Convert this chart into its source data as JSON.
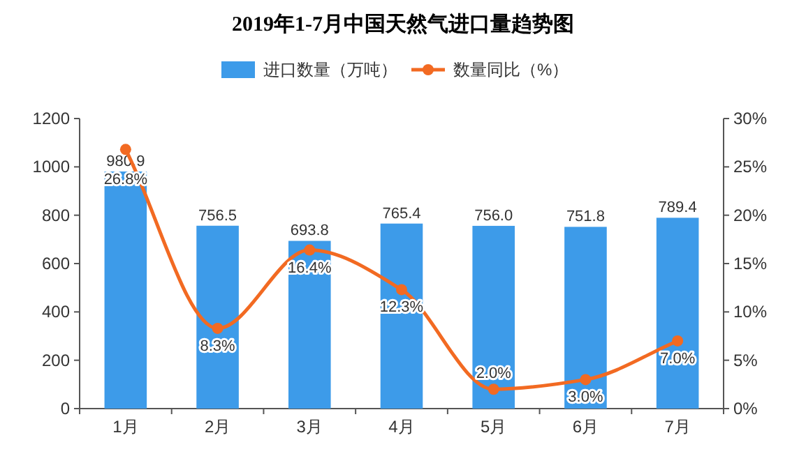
{
  "chart_data": {
    "type": "bar",
    "title": "2019年1-7月中国天然气进口量趋势图",
    "categories": [
      "1月",
      "2月",
      "3月",
      "4月",
      "5月",
      "6月",
      "7月"
    ],
    "series": [
      {
        "name": "进口数量（万吨）",
        "color": "#3d9be9",
        "values": [
          980.9,
          756.5,
          693.8,
          765.4,
          756.0,
          751.8,
          789.4
        ],
        "value_labels": [
          "980.9",
          "756.5",
          "693.8",
          "765.4",
          "756.0",
          "751.8",
          "789.4"
        ]
      },
      {
        "name": "数量同比（%）",
        "type": "line",
        "axis": "y2",
        "color": "#f26a22",
        "values": [
          26.8,
          8.3,
          16.4,
          12.3,
          2.0,
          3.0,
          7.0
        ],
        "value_labels": [
          "26.8%",
          "8.3%",
          "16.4%",
          "12.3%",
          "2.0%",
          "3.0%",
          "7.0%"
        ]
      }
    ],
    "ylim": [
      0,
      1200
    ],
    "yticks": [
      0,
      200,
      400,
      600,
      800,
      1000,
      1200
    ],
    "y2lim": [
      0,
      30
    ],
    "y2ticks": [
      {
        "value": 0,
        "label": "0%"
      },
      {
        "value": 5,
        "label": "5%"
      },
      {
        "value": 10,
        "label": "10%"
      },
      {
        "value": 15,
        "label": "15%"
      },
      {
        "value": 20,
        "label": "20%"
      },
      {
        "value": 25,
        "label": "25%"
      },
      {
        "value": 30,
        "label": "30%"
      }
    ],
    "legend": "top",
    "marker": "circle"
  }
}
